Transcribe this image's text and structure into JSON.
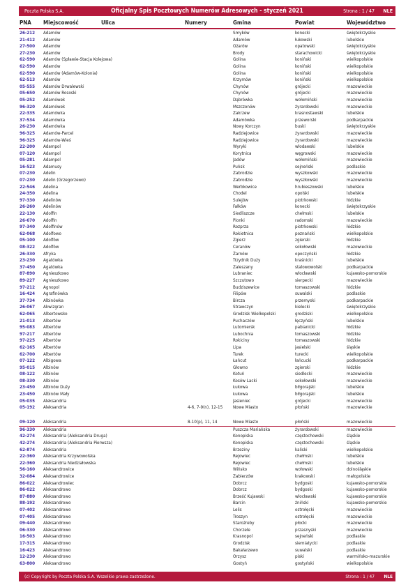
{
  "header": {
    "company": "Poczta Polska S.A.",
    "title": "Oficjalny Spis Pocztowych Numerów Adresowych - styczeń 2021",
    "page": "Strona : 1 / 47",
    "logo": "NLE"
  },
  "columns": {
    "pna": "PNA",
    "miejscowosc": "Miejscowość",
    "ulica": "Ulica",
    "numery": "Numery",
    "gmina": "Gmina",
    "powiat": "Powiat",
    "wojewodztwo": "Województwo"
  },
  "rows": [
    {
      "pna": "26-212",
      "loc": "Adamów",
      "num": "",
      "gm": "Smyków",
      "pw": "konecki",
      "woj": "świętokrzyskie"
    },
    {
      "pna": "21-412",
      "loc": "Adamów",
      "num": "",
      "gm": "Adamów",
      "pw": "łukowski",
      "woj": "lubelskie"
    },
    {
      "pna": "27-500",
      "loc": "Adamów",
      "num": "",
      "gm": "Ożarów",
      "pw": "opatowski",
      "woj": "świętokrzyskie"
    },
    {
      "pna": "27-230",
      "loc": "Adamów",
      "num": "",
      "gm": "Brody",
      "pw": "starachowicki",
      "woj": "świętokrzyskie"
    },
    {
      "pna": "62-590",
      "loc": "Adamów (Spławie-Stacja Kolejowa)",
      "num": "",
      "gm": "Golina",
      "pw": "koniński",
      "woj": "wielkopolskie"
    },
    {
      "pna": "62-590",
      "loc": "Adamów",
      "num": "",
      "gm": "Golina",
      "pw": "koniński",
      "woj": "wielkopolskie"
    },
    {
      "pna": "62-590",
      "loc": "Adamów (Adamów-Kolonia)",
      "num": "",
      "gm": "Golina",
      "pw": "koniński",
      "woj": "wielkopolskie"
    },
    {
      "pna": "62-513",
      "loc": "Adamów",
      "num": "",
      "gm": "Krzymów",
      "pw": "koniński",
      "woj": "wielkopolskie"
    },
    {
      "pna": "05-555",
      "loc": "Adamów Drwalewski",
      "num": "",
      "gm": "Chynów",
      "pw": "grójecki",
      "woj": "mazowieckie"
    },
    {
      "pna": "05-650",
      "loc": "Adamów Rososki",
      "num": "",
      "gm": "Chynów",
      "pw": "grójecki",
      "woj": "mazowieckie"
    },
    {
      "pna": "05-252",
      "loc": "Adamówek",
      "num": "",
      "gm": "Dąbrówka",
      "pw": "wołomiński",
      "woj": "mazowieckie"
    },
    {
      "pna": "96-320",
      "loc": "Adamówek",
      "num": "",
      "gm": "Mszczonów",
      "pw": "żyrardowski",
      "woj": "mazowieckie"
    },
    {
      "pna": "22-335",
      "loc": "Adamówka",
      "num": "",
      "gm": "Zakrzew",
      "pw": "krasnostawski",
      "woj": "lubelskie"
    },
    {
      "pna": "37-534",
      "loc": "Adamówka",
      "num": "",
      "gm": "Adamówka",
      "pw": "przeworski",
      "woj": "podkarpackie"
    },
    {
      "pna": "26-230",
      "loc": "Adamówka",
      "num": "",
      "gm": "Nowy Korczyn",
      "pw": "buski",
      "woj": "świętokrzyskie"
    },
    {
      "pna": "96-325",
      "loc": "Adamów-Parcel",
      "num": "",
      "gm": "Radziejowice",
      "pw": "żyrardowski",
      "woj": "mazowieckie"
    },
    {
      "pna": "96-325",
      "loc": "Adamów-Wieś",
      "num": "",
      "gm": "Radziejowice",
      "pw": "żyrardowski",
      "woj": "mazowieckie"
    },
    {
      "pna": "22-200",
      "loc": "Adampol",
      "num": "",
      "gm": "Wyryki",
      "pw": "włodawski",
      "woj": "lubelskie"
    },
    {
      "pna": "07-120",
      "loc": "Adampol",
      "num": "",
      "gm": "Korytnica",
      "pw": "węgrowski",
      "woj": "mazowieckie"
    },
    {
      "pna": "05-281",
      "loc": "Adampol",
      "num": "",
      "gm": "Jadów",
      "pw": "wołomiński",
      "woj": "mazowieckie"
    },
    {
      "pna": "16-523",
      "loc": "Adamusy",
      "num": "",
      "gm": "Puńsk",
      "pw": "sejneński",
      "woj": "podlaskie"
    },
    {
      "pna": "07-230",
      "loc": "Adelin",
      "num": "",
      "gm": "Zabrodzie",
      "pw": "wyszkowski",
      "woj": "mazowieckie"
    },
    {
      "pna": "07-230",
      "loc": "Adelin (Grzegorzewo)",
      "num": "",
      "gm": "Zabrodzie",
      "pw": "wyszkowski",
      "woj": "mazowieckie"
    },
    {
      "pna": "22-546",
      "loc": "Adelina",
      "num": "",
      "gm": "Werbkowice",
      "pw": "hrubieszowski",
      "woj": "lubelskie"
    },
    {
      "pna": "24-350",
      "loc": "Adelina",
      "num": "",
      "gm": "Chodel",
      "pw": "opolski",
      "woj": "lubelskie"
    },
    {
      "pna": "97-330",
      "loc": "Adelinów",
      "num": "",
      "gm": "Sulejów",
      "pw": "piotrkowski",
      "woj": "łódzkie"
    },
    {
      "pna": "26-260",
      "loc": "Adelinów",
      "num": "",
      "gm": "Fałków",
      "pw": "konecki",
      "woj": "świętokrzyskie"
    },
    {
      "pna": "22-130",
      "loc": "Adolfin",
      "num": "",
      "gm": "Siedliszcze",
      "pw": "chełmski",
      "woj": "lubelskie"
    },
    {
      "pna": "26-670",
      "loc": "Adolfin",
      "num": "",
      "gm": "Pionki",
      "pw": "radomski",
      "woj": "mazowieckie"
    },
    {
      "pna": "97-340",
      "loc": "Adolfinów",
      "num": "",
      "gm": "Rozprza",
      "pw": "piotrkowski",
      "woj": "łódzkie"
    },
    {
      "pna": "62-068",
      "loc": "Adolfowo",
      "num": "",
      "gm": "Rokietnica",
      "pw": "poznański",
      "woj": "wielkopolskie"
    },
    {
      "pna": "05-100",
      "loc": "Adolfów",
      "num": "",
      "gm": "Zgierz",
      "pw": "zgierski",
      "woj": "łódzkie"
    },
    {
      "pna": "08-322",
      "loc": "Adolfów",
      "num": "",
      "gm": "Ceranów",
      "pw": "sokołowski",
      "woj": "mazowieckie"
    },
    {
      "pna": "26-330",
      "loc": "Afryka",
      "num": "",
      "gm": "Żarnów",
      "pw": "opoczyński",
      "woj": "łódzkie"
    },
    {
      "pna": "23-230",
      "loc": "Agatówka",
      "num": "",
      "gm": "Trzydnik Duży",
      "pw": "kraśnicki",
      "woj": "lubelskie"
    },
    {
      "pna": "37-450",
      "loc": "Agatówka",
      "num": "",
      "gm": "Zaleszany",
      "pw": "stalowowolski",
      "woj": "podkarpackie"
    },
    {
      "pna": "87-890",
      "loc": "Agnieszkowo",
      "num": "",
      "gm": "Lubraniec",
      "pw": "włocławski",
      "woj": "kujawsko-pomorskie"
    },
    {
      "pna": "89-227",
      "loc": "Agnieszkowo",
      "num": "",
      "gm": "Szczutowo",
      "pw": "sierpecki",
      "woj": "mazowieckie"
    },
    {
      "pna": "97-212",
      "loc": "Agnopol",
      "num": "",
      "gm": "Budziszewice",
      "pw": "tomaszowski",
      "woj": "łódzkie"
    },
    {
      "pna": "16-424",
      "loc": "Agrafinówka",
      "num": "",
      "gm": "Filipów",
      "pw": "suwalski",
      "woj": "podlaskie"
    },
    {
      "pna": "37-734",
      "loc": "Albinówka",
      "num": "",
      "gm": "Bircza",
      "pw": "przemyski",
      "woj": "podkarpackie"
    },
    {
      "pna": "26-067",
      "loc": "Akwizgran",
      "num": "",
      "gm": "Strawczyn",
      "pw": "kielecki",
      "woj": "świętokrzyskie"
    },
    {
      "pna": "62-065",
      "loc": "Albertowsko",
      "num": "",
      "gm": "Grodzisk Wielkopolski",
      "pw": "grodziski",
      "woj": "wielkopolskie"
    },
    {
      "pna": "21-013",
      "loc": "Albertów",
      "num": "",
      "gm": "Puchaczów",
      "pw": "łęczyński",
      "woj": "lubelskie"
    },
    {
      "pna": "95-083",
      "loc": "Albertów",
      "num": "",
      "gm": "Lutomiersk",
      "pw": "pabianicki",
      "woj": "łódzkie"
    },
    {
      "pna": "97-217",
      "loc": "Albertów",
      "num": "",
      "gm": "Lubochnia",
      "pw": "tomaszowski",
      "woj": "łódzkie"
    },
    {
      "pna": "97-225",
      "loc": "Albertów",
      "num": "",
      "gm": "Rokiciny",
      "pw": "tomaszowski",
      "woj": "łódzkie"
    },
    {
      "pna": "62-165",
      "loc": "Albertów",
      "num": "",
      "gm": "Lipa",
      "pw": "jasielski",
      "woj": "śląskie"
    },
    {
      "pna": "62-700",
      "loc": "Albertów",
      "num": "",
      "gm": "Turek",
      "pw": "turecki",
      "woj": "wielkopolskie"
    },
    {
      "pna": "07-122",
      "loc": "Albigowa",
      "num": "",
      "gm": "Łańcut",
      "pw": "łańcucki",
      "woj": "podkarpackie"
    },
    {
      "pna": "95-015",
      "loc": "Albinów",
      "num": "",
      "gm": "Głowno",
      "pw": "zgierski",
      "woj": "łódzkie"
    },
    {
      "pna": "08-122",
      "loc": "Albinów",
      "num": "",
      "gm": "Kotuń",
      "pw": "siedlecki",
      "woj": "mazowieckie"
    },
    {
      "pna": "08-330",
      "loc": "Albinów",
      "num": "",
      "gm": "Kosów Lacki",
      "pw": "sokołowski",
      "woj": "mazowieckie"
    },
    {
      "pna": "23-450",
      "loc": "Albinów Duży",
      "num": "",
      "gm": "Łukowa",
      "pw": "biłgorajski",
      "woj": "lubelskie"
    },
    {
      "pna": "23-450",
      "loc": "Albinów Mały",
      "num": "",
      "gm": "Łukowa",
      "pw": "biłgorajski",
      "woj": "lubelskie"
    },
    {
      "pna": "05-035",
      "loc": "Aleksandria",
      "num": "",
      "gm": "Jasieniec",
      "pw": "grójecki",
      "woj": "mazowieckie"
    },
    {
      "pna": "05-192",
      "loc": "Aleksandria",
      "num": "4-6, 7-9(n), 12-15",
      "gm": "Nowe Miasto",
      "pw": "płoński",
      "woj": "mazowieckie",
      "tall": true
    },
    {
      "pna": "09-120",
      "loc": "Aleksandria",
      "num": "8-10(p), 11, 14",
      "gm": "Nowe Miasto",
      "pw": "płoński",
      "woj": "mazowieckie",
      "sep": true
    },
    {
      "pna": "96-330",
      "loc": "Aleksandria",
      "num": "",
      "gm": "Puszcza Mariańska",
      "pw": "żyrardowski",
      "woj": "mazowieckie"
    },
    {
      "pna": "42-274",
      "loc": "Aleksandria (Aleksandria Druga)",
      "num": "",
      "gm": "Konopiska",
      "pw": "częstochowski",
      "woj": "śląskie"
    },
    {
      "pna": "42-274",
      "loc": "Aleksandria (Aleksandria Pierwsza)",
      "num": "",
      "gm": "Konopiska",
      "pw": "częstochowski",
      "woj": "śląskie"
    },
    {
      "pna": "62-874",
      "loc": "Aleksandria",
      "num": "",
      "gm": "Brzeziny",
      "pw": "kaliski",
      "woj": "wielkopolskie"
    },
    {
      "pna": "22-360",
      "loc": "Aleksandria Krzywowolska",
      "num": "",
      "gm": "Rejowiec",
      "pw": "chełmski",
      "woj": "lubelskie"
    },
    {
      "pna": "22-360",
      "loc": "Aleksandria Niedziałowska",
      "num": "",
      "gm": "Rejowiec",
      "pw": "chełmski",
      "woj": "lubelskie"
    },
    {
      "pna": "56-160",
      "loc": "Aleksandrowice",
      "num": "",
      "gm": "Wińsko",
      "pw": "wołowski",
      "woj": "dolnośląskie"
    },
    {
      "pna": "32-084",
      "loc": "Aleksandrowice",
      "num": "",
      "gm": "Zabierzów",
      "pw": "krakowski",
      "woj": "małopolskie"
    },
    {
      "pna": "86-022",
      "loc": "Aleksandrowiec",
      "num": "",
      "gm": "Dobrcz",
      "pw": "bydgoski",
      "woj": "kujawsko-pomorskie"
    },
    {
      "pna": "86-022",
      "loc": "Aleksandrowo",
      "num": "",
      "gm": "Dobrcz",
      "pw": "bydgoski",
      "woj": "kujawsko-pomorskie"
    },
    {
      "pna": "87-880",
      "loc": "Aleksandrowo",
      "num": "",
      "gm": "Brześć Kujawski",
      "pw": "włocławski",
      "woj": "kujawsko-pomorskie"
    },
    {
      "pna": "88-192",
      "loc": "Aleksandrowo",
      "num": "",
      "gm": "Barcin",
      "pw": "żniński",
      "woj": "kujawsko-pomorskie"
    },
    {
      "pna": "07-402",
      "loc": "Aleksandrowo",
      "num": "",
      "gm": "Lelis",
      "pw": "ostrołęcki",
      "woj": "mazowieckie"
    },
    {
      "pna": "07-405",
      "loc": "Aleksandrowo",
      "num": "",
      "gm": "Troszyn",
      "pw": "ostrołęcki",
      "woj": "mazowieckie"
    },
    {
      "pna": "09-440",
      "loc": "Aleksandrowo",
      "num": "",
      "gm": "Staroźreby",
      "pw": "płocki",
      "woj": "mazowieckie"
    },
    {
      "pna": "06-330",
      "loc": "Aleksandrowo",
      "num": "",
      "gm": "Chorzele",
      "pw": "przasnyski",
      "woj": "mazowieckie"
    },
    {
      "pna": "16-503",
      "loc": "Aleksandrowo",
      "num": "",
      "gm": "Krasnopol",
      "pw": "sejneński",
      "woj": "podlaskie"
    },
    {
      "pna": "17-315",
      "loc": "Aleksandrowo",
      "num": "",
      "gm": "Grodzisk",
      "pw": "siemiatycki",
      "woj": "podlaskie"
    },
    {
      "pna": "16-423",
      "loc": "Aleksandrowo",
      "num": "",
      "gm": "Bakałarzewo",
      "pw": "suwalski",
      "woj": "podlaskie"
    },
    {
      "pna": "12-230",
      "loc": "Aleksandrowo",
      "num": "",
      "gm": "Orzysz",
      "pw": "piski",
      "woj": "warmińsko-mazurskie"
    },
    {
      "pna": "63-800",
      "loc": "Aleksandrowo",
      "num": "",
      "gm": "Gostyń",
      "pw": "gostyński",
      "woj": "wielkopolskie"
    }
  ],
  "footer": {
    "copyright": "(c) Copyright by Poczta Polska S.A. Wszelkie prawa zastrzeżone.",
    "page": "Strona : 1 / 47",
    "logo": "NLE"
  }
}
